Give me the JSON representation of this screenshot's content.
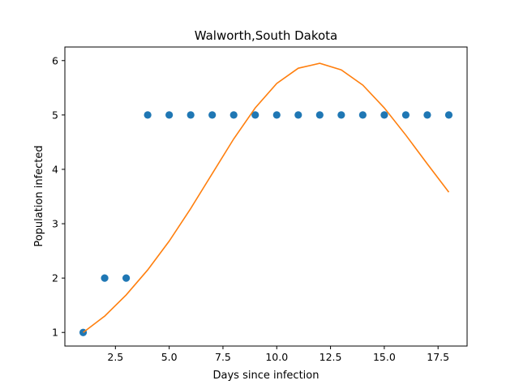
{
  "chart_data": {
    "type": "scatter",
    "title": "Walworth,South Dakota",
    "xlabel": "Days since infection",
    "ylabel": "Population infected",
    "xlim": [
      0.15,
      18.85
    ],
    "ylim": [
      0.75,
      6.25
    ],
    "xticks": [
      "2.5",
      "5.0",
      "7.5",
      "10.0",
      "12.5",
      "15.0",
      "17.5"
    ],
    "yticks": [
      "1",
      "2",
      "3",
      "4",
      "5",
      "6"
    ],
    "grid": false,
    "series": [
      {
        "kind": "scatter",
        "color": "#1f77b4",
        "x": [
          1,
          2,
          3,
          4,
          5,
          6,
          7,
          8,
          9,
          10,
          11,
          12,
          13,
          14,
          15,
          16,
          17,
          18
        ],
        "y": [
          1,
          2,
          2,
          5,
          5,
          5,
          5,
          5,
          5,
          5,
          5,
          5,
          5,
          5,
          5,
          5,
          5,
          5
        ]
      },
      {
        "kind": "line",
        "color": "#ff7f0e",
        "x": [
          1,
          2,
          3,
          4,
          5,
          6,
          7,
          8,
          9,
          10,
          11,
          12,
          13,
          14,
          15,
          16,
          17,
          18
        ],
        "y": [
          1.0,
          1.3,
          1.69,
          2.15,
          2.68,
          3.28,
          3.92,
          4.56,
          5.13,
          5.58,
          5.86,
          5.95,
          5.83,
          5.55,
          5.13,
          4.63,
          4.1,
          3.58
        ]
      }
    ]
  }
}
